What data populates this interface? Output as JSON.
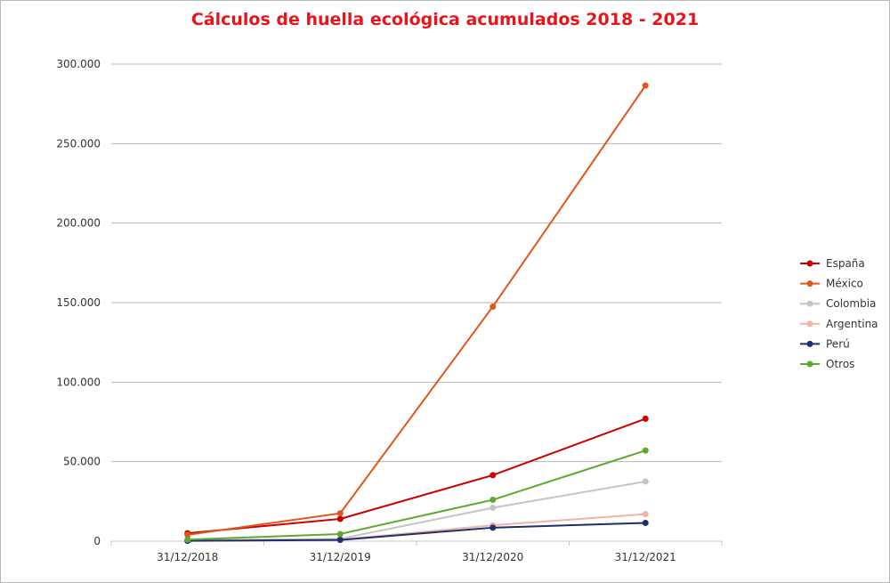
{
  "chart_data": {
    "type": "line",
    "title": "Cálculos de huella ecológica acumulados 2018 - 2021",
    "title_color": "#e8141c",
    "categories": [
      "31/12/2018",
      "31/12/2019",
      "31/12/2020",
      "31/12/2021"
    ],
    "ylim": [
      0,
      300000
    ],
    "ytick_values": [
      0,
      50000,
      100000,
      150000,
      200000,
      250000,
      300000
    ],
    "ytick_labels": [
      "0",
      "50.000",
      "100.000",
      "150.000",
      "200.000",
      "250.000",
      "300.000"
    ],
    "grid": true,
    "legend_position": "right",
    "series": [
      {
        "name": "España",
        "color": "#cc0000",
        "values": [
          5000,
          14000,
          41500,
          77000
        ]
      },
      {
        "name": "México",
        "color": "#e0561b",
        "values": [
          4000,
          17500,
          147500,
          286500
        ]
      },
      {
        "name": "Colombia",
        "color": "#c4c4c4",
        "values": [
          500,
          1500,
          21000,
          37500
        ]
      },
      {
        "name": "Argentina",
        "color": "#f0b3a6",
        "values": [
          300,
          1000,
          10000,
          17000
        ]
      },
      {
        "name": "Perú",
        "color": "#1b2f6b",
        "values": [
          200,
          800,
          8500,
          11500
        ]
      },
      {
        "name": "Otros",
        "color": "#5fa830",
        "values": [
          1000,
          4500,
          26000,
          57000
        ]
      }
    ]
  }
}
